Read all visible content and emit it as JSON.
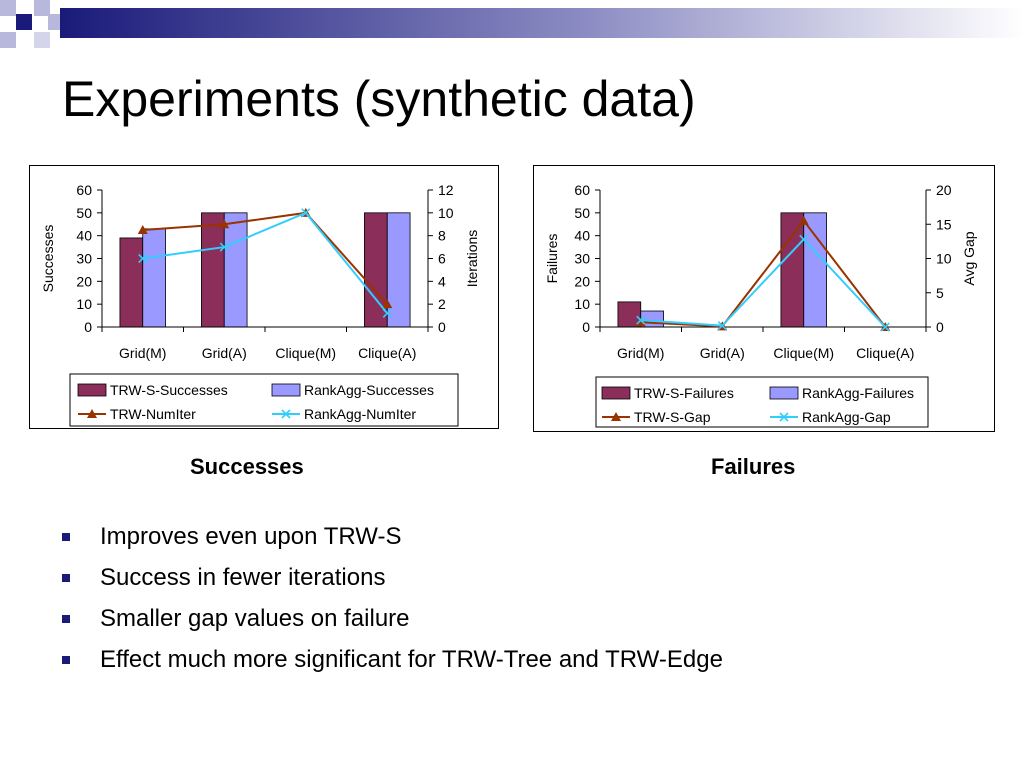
{
  "slide": {
    "title": "Experiments (synthetic data)",
    "captions": [
      "Successes",
      "Failures"
    ],
    "bullets": [
      "Improves even upon TRW-S",
      "Success in fewer iterations",
      "Smaller gap values on failure",
      "Effect much more significant for TRW-Tree and TRW-Edge"
    ]
  },
  "colors": {
    "accent_navy": "#1a1a7a",
    "deco_light": "#b8b8dc"
  },
  "chart_data": [
    {
      "type": "bar",
      "categories": [
        "Grid(M)",
        "Grid(A)",
        "Clique(M)",
        "Clique(A)"
      ],
      "series": [
        {
          "name": "TRW-S-Successes",
          "type": "bar",
          "axis": "left",
          "color": "#8b2f5a",
          "values": [
            39,
            50,
            0,
            50
          ]
        },
        {
          "name": "RankAgg-Successes",
          "type": "bar",
          "axis": "left",
          "color": "#9999ff",
          "values": [
            43,
            50,
            0,
            50
          ]
        },
        {
          "name": "TRW-NumIter",
          "type": "line",
          "axis": "right",
          "color": "#993300",
          "marker": "triangle",
          "values": [
            8.5,
            9,
            10,
            2
          ]
        },
        {
          "name": "RankAgg-NumIter",
          "type": "line",
          "axis": "right",
          "color": "#33ccff",
          "marker": "x",
          "values": [
            6,
            7,
            10,
            1.2
          ]
        }
      ],
      "ylabel": "Successes",
      "y2label": "Iterations",
      "ylim": [
        0,
        60
      ],
      "yticks": [
        "0",
        "10",
        "20",
        "30",
        "40",
        "50",
        "60"
      ],
      "y2lim": [
        0,
        12
      ],
      "y2ticks": [
        "0",
        "2",
        "4",
        "6",
        "8",
        "10",
        "12"
      ],
      "legend_position": "bottom"
    },
    {
      "type": "bar",
      "categories": [
        "Grid(M)",
        "Grid(A)",
        "Clique(M)",
        "Clique(A)"
      ],
      "series": [
        {
          "name": "TRW-S-Failures",
          "type": "bar",
          "axis": "left",
          "color": "#8b2f5a",
          "values": [
            11,
            0,
            50,
            0
          ]
        },
        {
          "name": "RankAgg-Failures",
          "type": "bar",
          "axis": "left",
          "color": "#9999ff",
          "values": [
            7,
            0,
            50,
            0
          ]
        },
        {
          "name": "TRW-S-Gap",
          "type": "line",
          "axis": "right",
          "color": "#993300",
          "marker": "triangle",
          "values": [
            0.7,
            0.1,
            15.5,
            0
          ]
        },
        {
          "name": "RankAgg-Gap",
          "type": "line",
          "axis": "right",
          "color": "#33ccff",
          "marker": "x",
          "values": [
            1,
            0.2,
            12.8,
            0
          ]
        }
      ],
      "ylabel": "Failures",
      "y2label": "Avg Gap",
      "ylim": [
        0,
        60
      ],
      "yticks": [
        "0",
        "10",
        "20",
        "30",
        "40",
        "50",
        "60"
      ],
      "y2lim": [
        0,
        20
      ],
      "y2ticks": [
        "0",
        "5",
        "10",
        "15",
        "20"
      ],
      "legend_position": "bottom"
    }
  ]
}
